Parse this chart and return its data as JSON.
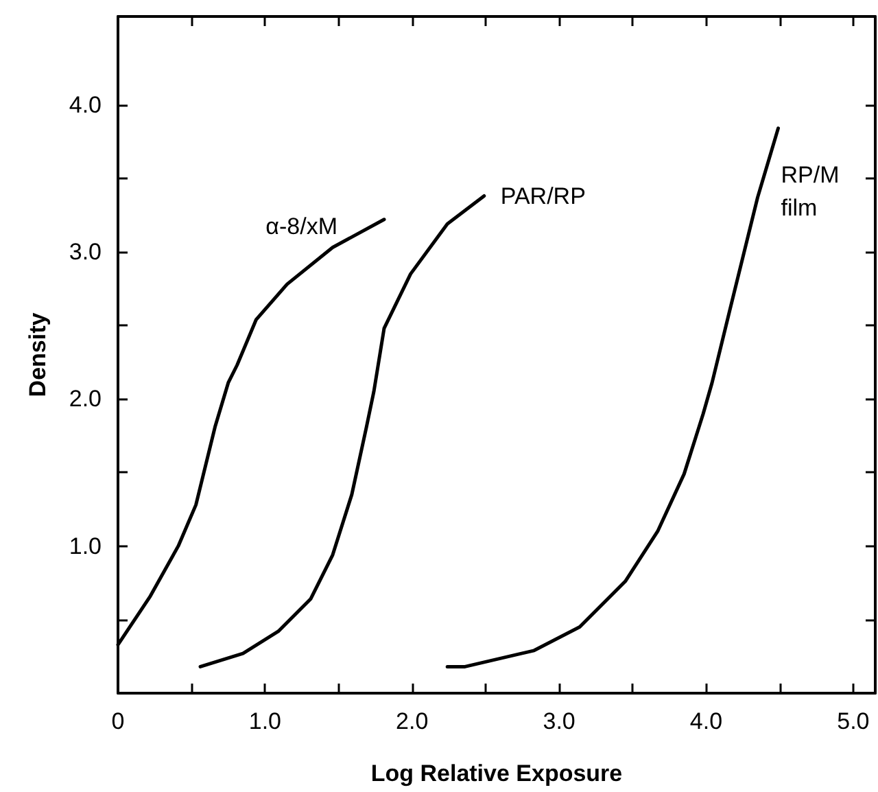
{
  "chart_data": {
    "type": "line",
    "xlabel": "Log Relative Exposure",
    "ylabel": "Density",
    "xlim": [
      0,
      5.15
    ],
    "ylim": [
      0,
      4.6
    ],
    "xticks": [
      {
        "value": 0,
        "label": "0"
      },
      {
        "value": 0.5,
        "label": null
      },
      {
        "value": 1,
        "label": "1.0"
      },
      {
        "value": 1.5,
        "label": null
      },
      {
        "value": 2,
        "label": "2.0"
      },
      {
        "value": 2.5,
        "label": null
      },
      {
        "value": 3,
        "label": "3.0"
      },
      {
        "value": 3.5,
        "label": null
      },
      {
        "value": 4,
        "label": "4.0"
      },
      {
        "value": 4.5,
        "label": null
      },
      {
        "value": 5,
        "label": "5.0"
      }
    ],
    "yticks": [
      {
        "value": 0,
        "label": null
      },
      {
        "value": 0.5,
        "label": null
      },
      {
        "value": 1,
        "label": "1.0"
      },
      {
        "value": 1.5,
        "label": null
      },
      {
        "value": 2,
        "label": "2.0"
      },
      {
        "value": 2.5,
        "label": null
      },
      {
        "value": 3,
        "label": "3.0"
      },
      {
        "value": 3.5,
        "label": null
      },
      {
        "value": 4,
        "label": "4.0"
      }
    ],
    "grid": false,
    "marker": "none",
    "line_style": "solid",
    "series": [
      {
        "name": "α-8/xM",
        "color": "#000000",
        "x": [
          0,
          0.22,
          0.41,
          0.53,
          0.66,
          0.75,
          0.81,
          0.94,
          1.15,
          1.46,
          1.81
        ],
        "values": [
          0.33,
          0.66,
          1.0,
          1.28,
          1.81,
          2.11,
          2.23,
          2.54,
          2.78,
          3.03,
          3.22
        ]
      },
      {
        "name": "PAR/RP",
        "color": "#000000",
        "x": [
          0.56,
          0.85,
          1.09,
          1.31,
          1.46,
          1.59,
          1.69,
          1.74,
          1.81,
          1.99,
          2.24,
          2.49
        ],
        "values": [
          0.18,
          0.27,
          0.42,
          0.64,
          0.94,
          1.35,
          1.81,
          2.05,
          2.48,
          2.85,
          3.19,
          3.38
        ]
      },
      {
        "name": "RP/M film",
        "color": "#000000",
        "x": [
          2.24,
          2.36,
          2.83,
          3.14,
          3.45,
          3.67,
          3.85,
          3.98,
          4.04,
          4.16,
          4.35,
          4.49
        ],
        "values": [
          0.18,
          0.18,
          0.29,
          0.45,
          0.76,
          1.1,
          1.49,
          1.9,
          2.11,
          2.6,
          3.37,
          3.84
        ]
      }
    ]
  }
}
